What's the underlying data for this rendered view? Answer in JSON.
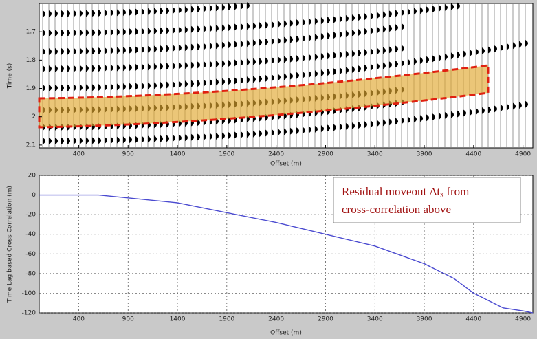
{
  "chart_data": [
    {
      "type": "seismic",
      "ylabel": "Time (s)",
      "xlabel": "Offset (m)",
      "xlim": [
        0,
        5000
      ],
      "xticks": [
        400,
        900,
        1400,
        1900,
        2400,
        2900,
        3400,
        3900,
        4400,
        4900
      ],
      "ylim": [
        1.6,
        2.11
      ],
      "yticks": [
        1.7,
        1.8,
        1.9,
        2,
        2.1
      ],
      "y_inverted": true
    },
    {
      "type": "line",
      "ylabel": "Time Lag based Cross Correlation (m)",
      "xlabel": "Offset (m)",
      "xlim": [
        0,
        5000
      ],
      "xticks": [
        400,
        900,
        1400,
        1900,
        2400,
        2900,
        3400,
        3900,
        4400,
        4900
      ],
      "ylim": [
        -120,
        20
      ],
      "yticks": [
        20,
        0,
        -20,
        -40,
        -60,
        -80,
        -100,
        -120
      ],
      "grid": true,
      "x": [
        0,
        400,
        600,
        900,
        1400,
        1900,
        2400,
        2900,
        3400,
        3900,
        4200,
        4400,
        4700,
        4900,
        5000
      ],
      "values": [
        0,
        0,
        0,
        -3,
        -8,
        -18,
        -28,
        -40,
        -52,
        -70,
        -85,
        -100,
        -115,
        -118,
        -120
      ],
      "color": "#4a4ad0",
      "annotation": [
        "Residual moveout Δtₓ from",
        "cross-correlation above"
      ]
    }
  ]
}
